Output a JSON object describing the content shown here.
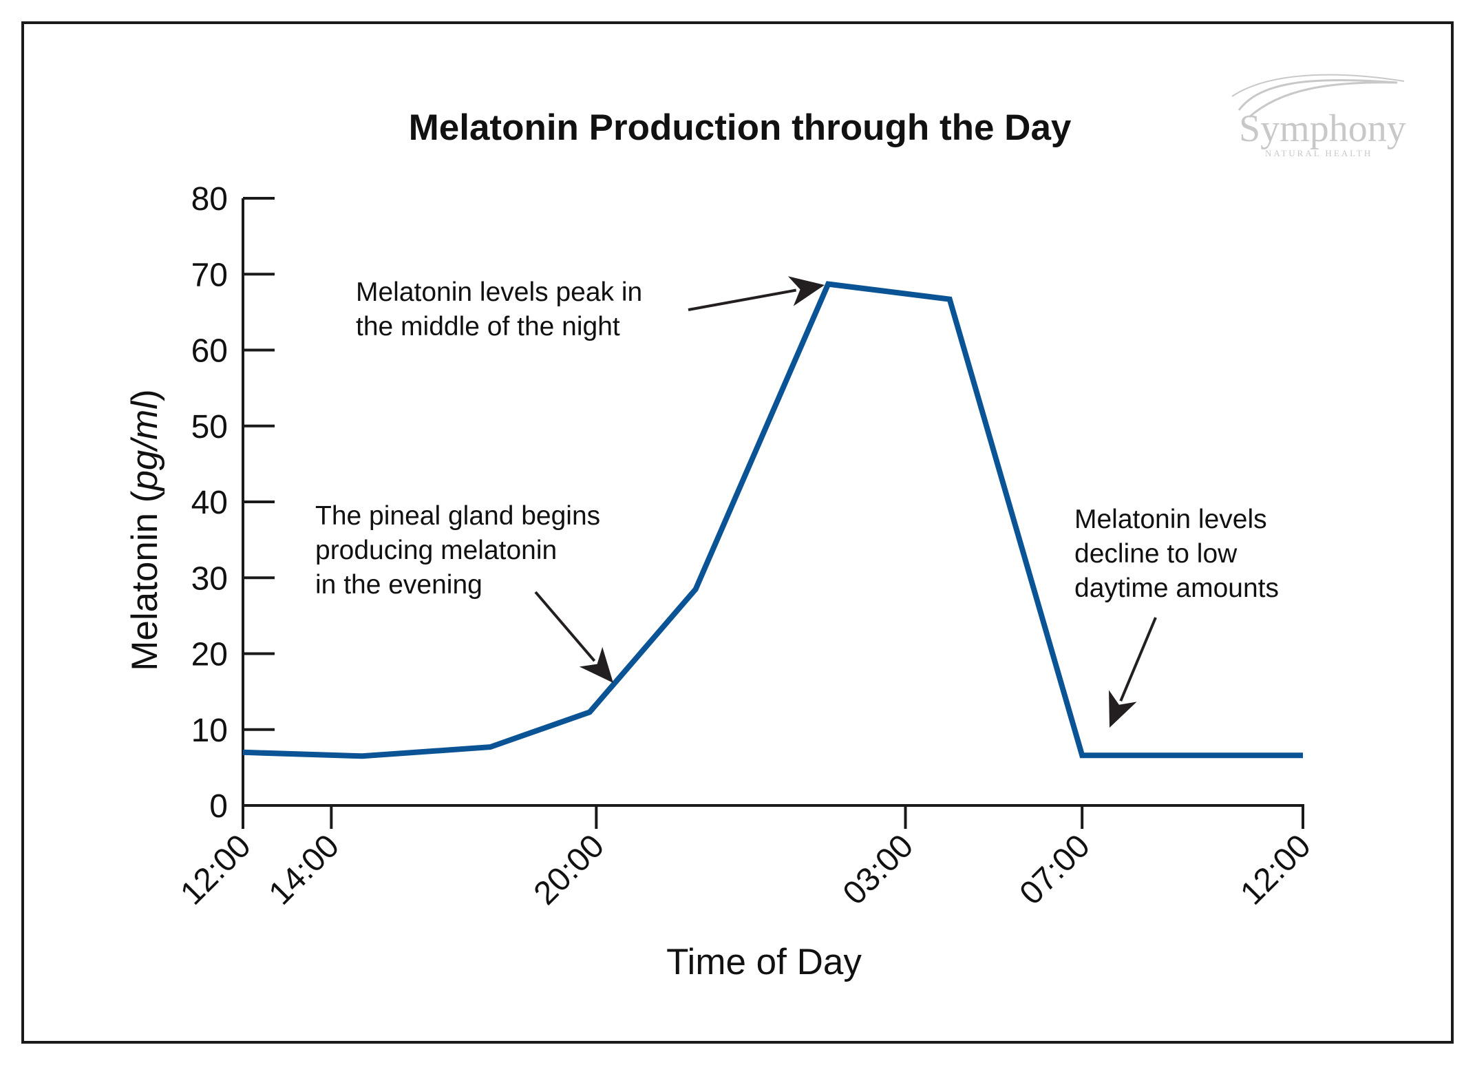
{
  "colors": {
    "line": "#0a5394",
    "axis": "#1a1a1a",
    "frame": "#1a1a1a",
    "logo": "#c8c8c8"
  },
  "logo": {
    "name": "Symphony",
    "sub": "NATURAL HEALTH"
  },
  "chart_data": {
    "type": "line",
    "title": "Melatonin Production through the Day",
    "xlabel": "Time of Day",
    "ylabel_parts": [
      "Melatonin (",
      "pg/ml",
      ")"
    ],
    "ylim": [
      0,
      80
    ],
    "yticks": [
      0,
      10,
      20,
      30,
      40,
      50,
      60,
      70,
      80
    ],
    "xlim_hours": [
      12,
      36
    ],
    "xticks": [
      {
        "label": "12:00",
        "hour": 12
      },
      {
        "label": "14:00",
        "hour": 14
      },
      {
        "label": "20:00",
        "hour": 20
      },
      {
        "label": "03:00",
        "hour": 27
      },
      {
        "label": "07:00",
        "hour": 31
      },
      {
        "label": "12:00",
        "hour": 36
      }
    ],
    "series": [
      {
        "points": [
          {
            "x": "12:00",
            "hour": 12,
            "y": 7.0
          },
          {
            "x": "14:40",
            "hour": 14.7,
            "y": 6.5
          },
          {
            "x": "17:40",
            "hour": 17.6,
            "y": 7.7
          },
          {
            "x": "19:50",
            "hour": 19.85,
            "y": 12.3
          },
          {
            "x": "22:15",
            "hour": 22.25,
            "y": 28.5
          },
          {
            "x": "01:15",
            "hour": 25.25,
            "y": 68.7
          },
          {
            "x": "04:00",
            "hour": 28.0,
            "y": 66.7
          },
          {
            "x": "07:00",
            "hour": 31,
            "y": 6.6
          },
          {
            "x": "12:00",
            "hour": 36,
            "y": 6.6
          }
        ]
      }
    ],
    "annotations": [
      {
        "lines": [
          "Melatonin levels peak in",
          "the middle of the night"
        ],
        "target_hour": 25.25,
        "target_y": 68.7
      },
      {
        "lines": [
          "The pineal gland begins",
          "producing melatonin",
          "in the evening"
        ],
        "target_hour": 19.85,
        "target_y": 12.3
      },
      {
        "lines": [
          "Melatonin levels",
          "decline to low",
          "daytime amounts"
        ],
        "target_hour": 31.4,
        "target_y": 10
      }
    ]
  }
}
